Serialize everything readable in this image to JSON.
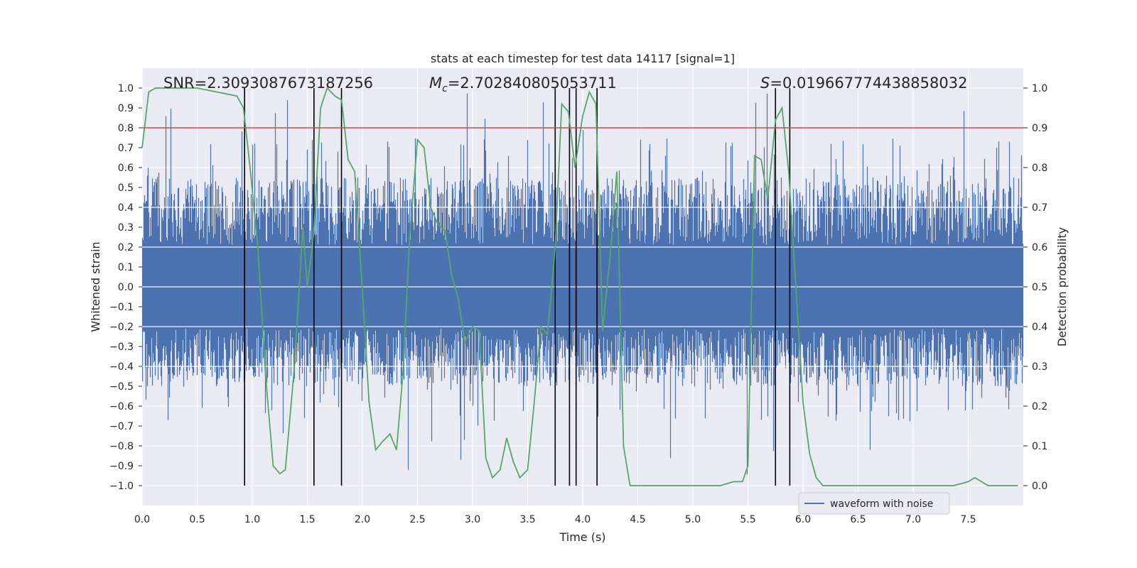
{
  "chart_data": {
    "type": "line",
    "title": "stats at each timestep for test data 14117 [signal=1]",
    "xlabel": "Time (s)",
    "ylabel": "Whitened strain",
    "y2label": "Detection probability",
    "xlim": [
      0.0,
      8.0
    ],
    "ylim": [
      -1.1,
      1.1
    ],
    "y2lim": [
      -0.05,
      1.05
    ],
    "x_ticks": [
      "0.0",
      "0.5",
      "1.0",
      "1.5",
      "2.0",
      "2.5",
      "3.0",
      "3.5",
      "4.0",
      "4.5",
      "5.0",
      "5.5",
      "6.0",
      "6.5",
      "7.0",
      "7.5"
    ],
    "y_ticks": [
      "1.0",
      "0.9",
      "0.8",
      "0.7",
      "0.6",
      "0.5",
      "0.4",
      "0.3",
      "0.2",
      "0.1",
      "0.0",
      "-0.1",
      "-0.2",
      "-0.3",
      "-0.4",
      "-0.5",
      "-0.6",
      "-0.7",
      "-0.8",
      "-0.9",
      "-1.0"
    ],
    "y2_ticks": [
      "1.0",
      "0.9",
      "0.8",
      "0.7",
      "0.6",
      "0.5",
      "0.4",
      "0.3",
      "0.2",
      "0.1",
      "0.0"
    ],
    "grid": true,
    "legend": {
      "placement": "lower-right",
      "entries": [
        "waveform with noise"
      ]
    },
    "annotations": {
      "snr": "SNR=2.3093087673187256",
      "mc_value": "=2.702840805053711",
      "s_value": "=0.019667774438858032"
    },
    "threshold": {
      "axis": "y2",
      "value": 0.9,
      "color": "#c44e52"
    },
    "vertical_lines": [
      0.93,
      1.56,
      1.81,
      3.75,
      3.88,
      3.94,
      4.13,
      5.75,
      5.88
    ],
    "vertical_lines_ylim": [
      -1.0,
      1.0
    ],
    "series": [
      {
        "name": "waveform with noise",
        "color": "#4c72b0",
        "kind": "noise",
        "description_stats": {
          "core": [
            -0.21,
            0.21
          ],
          "spread": [
            -0.5,
            0.55
          ],
          "max": 0.98,
          "min": -0.98
        }
      },
      {
        "color": "#55a868",
        "axis": "y2",
        "x": [
          0.0,
          0.06,
          0.12,
          0.5,
          0.86,
          0.92,
          0.98,
          1.05,
          1.12,
          1.19,
          1.25,
          1.3,
          1.38,
          1.46,
          1.5,
          1.56,
          1.62,
          1.68,
          1.75,
          1.81,
          1.87,
          1.93,
          2.0,
          2.06,
          2.12,
          2.18,
          2.25,
          2.31,
          2.37,
          2.43,
          2.5,
          2.56,
          2.62,
          2.68,
          2.75,
          2.81,
          2.87,
          2.93,
          3.0,
          3.06,
          3.12,
          3.18,
          3.25,
          3.31,
          3.37,
          3.43,
          3.5,
          3.56,
          3.62,
          3.68,
          3.75,
          3.81,
          3.87,
          3.93,
          4.0,
          4.06,
          4.12,
          4.18,
          4.25,
          4.31,
          4.37,
          4.43,
          4.5,
          4.62,
          5.0,
          5.25,
          5.37,
          5.45,
          5.5,
          5.56,
          5.62,
          5.68,
          5.75,
          5.81,
          5.87,
          5.93,
          6.0,
          6.06,
          6.12,
          6.18,
          6.5,
          7.0,
          7.37,
          7.5,
          7.56,
          7.62,
          7.68,
          7.75,
          7.87,
          7.95
        ],
        "y": [
          0.85,
          0.99,
          1.0,
          1.0,
          0.98,
          0.95,
          0.8,
          0.6,
          0.28,
          0.05,
          0.03,
          0.04,
          0.29,
          0.65,
          0.5,
          0.64,
          0.95,
          1.0,
          0.98,
          0.97,
          0.82,
          0.79,
          0.49,
          0.21,
          0.09,
          0.11,
          0.13,
          0.09,
          0.29,
          0.63,
          0.87,
          0.85,
          0.7,
          0.66,
          0.64,
          0.53,
          0.47,
          0.36,
          0.4,
          0.39,
          0.07,
          0.02,
          0.04,
          0.12,
          0.06,
          0.02,
          0.04,
          0.21,
          0.4,
          0.38,
          0.6,
          0.96,
          0.94,
          0.8,
          0.93,
          0.99,
          0.96,
          0.39,
          0.58,
          0.79,
          0.1,
          0.0,
          0.0,
          0.0,
          0.0,
          0.0,
          0.01,
          0.01,
          0.05,
          0.83,
          0.82,
          0.72,
          0.92,
          0.95,
          0.79,
          0.52,
          0.21,
          0.08,
          0.02,
          0.0,
          0.0,
          0.0,
          0.0,
          0.01,
          0.02,
          0.01,
          0.0,
          0.0,
          0.0,
          0.0
        ]
      }
    ]
  }
}
